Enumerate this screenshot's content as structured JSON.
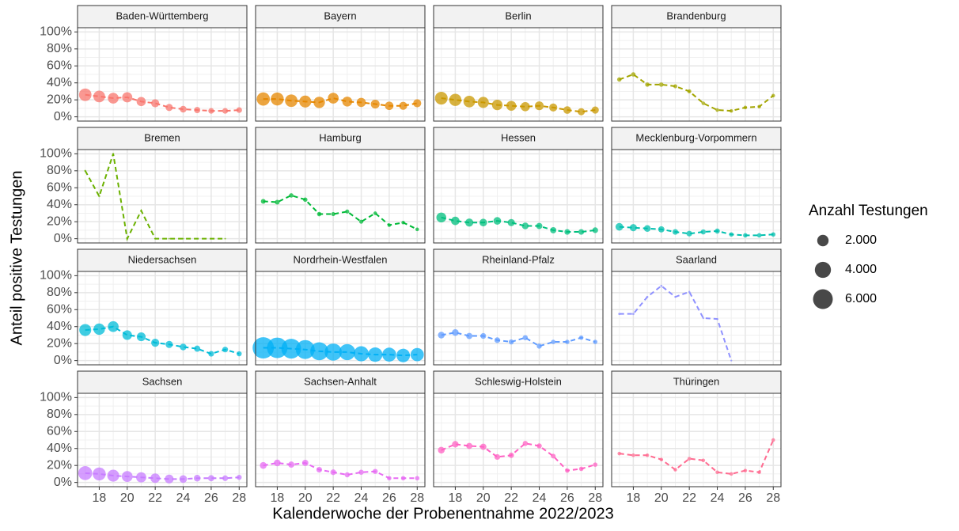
{
  "chart_data": {
    "type": "bubble-facets",
    "xlabel": "Kalenderwoche der Probenentnahme 2022/2023",
    "ylabel": "Anteil positive Testungen",
    "x": [
      17,
      18,
      19,
      20,
      21,
      22,
      23,
      24,
      25,
      26,
      27,
      28
    ],
    "xlim": [
      16.45,
      28.55
    ],
    "xticks": [
      18,
      20,
      22,
      24,
      26,
      28
    ],
    "ylim": [
      -5,
      105
    ],
    "yticks": [
      {
        "value": 0,
        "label": "0%"
      },
      {
        "value": 20,
        "label": "20%"
      },
      {
        "value": 40,
        "label": "40%"
      },
      {
        "value": 60,
        "label": "60%"
      },
      {
        "value": 80,
        "label": "80%"
      },
      {
        "value": 100,
        "label": "100%"
      }
    ],
    "grid": true,
    "size_legend": {
      "title": "Anzahl Testungen",
      "values": [
        {
          "value": 2000,
          "label": "2.000"
        },
        {
          "value": 4000,
          "label": "4.000"
        },
        {
          "value": 6000,
          "label": "6.000"
        }
      ]
    },
    "panels": [
      {
        "title": "Baden-Württemberg",
        "color": "#F8766D",
        "values": [
          26,
          24,
          22,
          23,
          18,
          16,
          11,
          9,
          8,
          7,
          7,
          8
        ],
        "sizes": [
          2400,
          2100,
          1800,
          1600,
          1300,
          1000,
          800,
          700,
          600,
          500,
          500,
          500
        ]
      },
      {
        "title": "Bayern",
        "color": "#E58700",
        "values": [
          21,
          21,
          19,
          18,
          17,
          22,
          18,
          17,
          15,
          13,
          13,
          16
        ],
        "sizes": [
          2700,
          2600,
          2400,
          2200,
          2000,
          1800,
          1500,
          1300,
          1200,
          1100,
          1000,
          1000
        ]
      },
      {
        "title": "Berlin",
        "color": "#C99800",
        "values": [
          22,
          20,
          18,
          17,
          14,
          13,
          12,
          13,
          11,
          8,
          6,
          8
        ],
        "sizes": [
          2500,
          2300,
          2100,
          1900,
          1700,
          1500,
          1300,
          1200,
          1000,
          900,
          800,
          800
        ]
      },
      {
        "title": "Brandenburg",
        "color": "#A3A500",
        "values": [
          44,
          50,
          38,
          38,
          36,
          30,
          16,
          8,
          7,
          11,
          12,
          25
        ],
        "sizes": [
          300,
          300,
          300,
          300,
          250,
          250,
          200,
          200,
          200,
          200,
          200,
          200
        ]
      },
      {
        "title": "Bremen",
        "color": "#6BB100",
        "values": [
          80,
          50,
          100,
          0,
          33,
          0,
          0,
          0,
          0,
          0,
          0,
          null
        ],
        "sizes": [
          60,
          60,
          50,
          50,
          50,
          40,
          40,
          40,
          40,
          40,
          40,
          null
        ]
      },
      {
        "title": "Hamburg",
        "color": "#00BA38",
        "values": [
          44,
          43,
          51,
          46,
          29,
          29,
          32,
          20,
          30,
          16,
          19,
          11
        ],
        "sizes": [
          350,
          350,
          300,
          300,
          300,
          250,
          250,
          250,
          200,
          200,
          200,
          200
        ]
      },
      {
        "title": "Hessen",
        "color": "#00BF7D",
        "values": [
          25,
          21,
          19,
          19,
          21,
          19,
          15,
          15,
          10,
          8,
          8,
          10
        ],
        "sizes": [
          1500,
          1100,
          1000,
          900,
          900,
          800,
          700,
          600,
          600,
          500,
          500,
          500
        ]
      },
      {
        "title": "Mecklenburg-Vorpommern",
        "color": "#00C0AF",
        "values": [
          14,
          13,
          12,
          11,
          8,
          6,
          8,
          9,
          5,
          4,
          4,
          5
        ],
        "sizes": [
          900,
          800,
          700,
          600,
          500,
          500,
          400,
          400,
          300,
          300,
          300,
          300
        ]
      },
      {
        "title": "Niedersachsen",
        "color": "#00BCD8",
        "values": [
          36,
          37,
          40,
          30,
          28,
          21,
          19,
          16,
          14,
          8,
          13,
          8
        ],
        "sizes": [
          2200,
          2000,
          1800,
          1400,
          1200,
          1000,
          800,
          700,
          600,
          500,
          500,
          400
        ]
      },
      {
        "title": "Nordrhein-Westfalen",
        "color": "#00B0F6",
        "values": [
          15,
          15,
          14,
          13,
          11,
          10,
          10,
          8,
          7,
          7,
          6,
          7
        ],
        "sizes": [
          7000,
          6500,
          6000,
          5500,
          5000,
          4500,
          4000,
          3500,
          3200,
          3000,
          2800,
          2700
        ]
      },
      {
        "title": "Rheinland-Pfalz",
        "color": "#619CFF",
        "values": [
          30,
          33,
          29,
          29,
          24,
          22,
          27,
          17,
          22,
          22,
          27,
          22
        ],
        "sizes": [
          700,
          700,
          600,
          500,
          500,
          400,
          400,
          400,
          300,
          300,
          300,
          300
        ]
      },
      {
        "title": "Saarland",
        "color": "#8F91FF",
        "values": [
          55,
          55,
          75,
          88,
          75,
          81,
          50,
          49,
          0,
          null,
          null,
          null
        ],
        "sizes": [
          80,
          80,
          70,
          70,
          60,
          60,
          60,
          50,
          50,
          null,
          null,
          null
        ]
      },
      {
        "title": "Sachsen",
        "color": "#C77CFF",
        "values": [
          11,
          10,
          8,
          7,
          6,
          5,
          4,
          4,
          5,
          5,
          5,
          6
        ],
        "sizes": [
          3000,
          2600,
          2200,
          1800,
          1600,
          1400,
          1200,
          900,
          700,
          600,
          500,
          400
        ]
      },
      {
        "title": "Sachsen-Anhalt",
        "color": "#E76BF3",
        "values": [
          20,
          23,
          21,
          23,
          15,
          12,
          9,
          12,
          13,
          5,
          5,
          5
        ],
        "sizes": [
          700,
          700,
          600,
          600,
          500,
          500,
          400,
          400,
          400,
          300,
          300,
          300
        ]
      },
      {
        "title": "Schleswig-Holstein",
        "color": "#FF61C3",
        "values": [
          38,
          45,
          43,
          42,
          30,
          32,
          46,
          43,
          31,
          14,
          16,
          21
        ],
        "sizes": [
          700,
          650,
          600,
          600,
          500,
          450,
          400,
          400,
          350,
          300,
          300,
          300
        ]
      },
      {
        "title": "Thüringen",
        "color": "#FF6C91",
        "values": [
          34,
          32,
          32,
          27,
          15,
          28,
          26,
          12,
          10,
          14,
          12,
          50
        ],
        "sizes": [
          200,
          200,
          200,
          200,
          200,
          200,
          200,
          200,
          200,
          200,
          200,
          200
        ]
      }
    ]
  }
}
